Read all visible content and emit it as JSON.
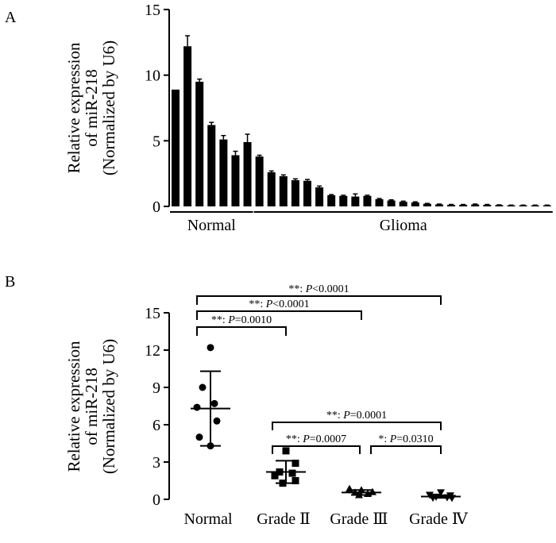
{
  "chart_data": [
    {
      "panel": "A",
      "type": "bar",
      "ylabel_lines": [
        "Relative expression",
        "of miR-218",
        "(Normalized by U6)"
      ],
      "ylim": [
        0,
        15
      ],
      "yticks": [
        0,
        5,
        10,
        15
      ],
      "groups": [
        {
          "label": "Normal",
          "count": 7
        },
        {
          "label": "Glioma",
          "count": 25
        }
      ],
      "values": [
        8.9,
        12.2,
        9.5,
        6.2,
        5.1,
        3.9,
        4.9,
        3.8,
        2.6,
        2.3,
        2.0,
        1.95,
        1.45,
        0.85,
        0.8,
        0.75,
        0.8,
        0.55,
        0.45,
        0.35,
        0.3,
        0.2,
        0.15,
        0.12,
        0.12,
        0.15,
        0.12,
        0.1,
        0.08,
        0.08,
        0.08,
        0.08
      ],
      "errors": [
        0.0,
        0.8,
        0.2,
        0.2,
        0.3,
        0.3,
        0.6,
        0.1,
        0.1,
        0.1,
        0.1,
        0.1,
        0.1,
        0.05,
        0.05,
        0.2,
        0.05,
        0.05,
        0.05,
        0.05,
        0.05,
        0.03,
        0.03,
        0.03,
        0.03,
        0.03,
        0.03,
        0.02,
        0.02,
        0.02,
        0.02,
        0.02
      ]
    },
    {
      "panel": "B",
      "type": "scatter",
      "ylabel_lines": [
        "Relative expression",
        "of miR-218",
        "(Normalized by U6)"
      ],
      "ylim": [
        0,
        15
      ],
      "yticks": [
        0,
        3,
        6,
        9,
        12,
        15
      ],
      "groups": [
        {
          "label": "Normal",
          "marker": "circle",
          "mean": 7.3,
          "sd": 3.0,
          "points": [
            12.2,
            9.0,
            7.7,
            7.4,
            6.3,
            5.0,
            4.3
          ]
        },
        {
          "label": "Grade Ⅱ",
          "marker": "square",
          "mean": 2.2,
          "sd": 0.9,
          "points": [
            3.9,
            2.9,
            2.2,
            2.1,
            1.9,
            1.5,
            1.3
          ]
        },
        {
          "label": "Grade Ⅲ",
          "marker": "triangle-up",
          "mean": 0.55,
          "sd": 0.2,
          "points": [
            0.85,
            0.75,
            0.6,
            0.55,
            0.45,
            0.35
          ]
        },
        {
          "label": "Grade Ⅳ",
          "marker": "triangle-down",
          "mean": 0.22,
          "sd": 0.1,
          "points": [
            0.55,
            0.35,
            0.3,
            0.2,
            0.15,
            0.12,
            0.1
          ]
        }
      ],
      "comparisons": [
        {
          "from": 0,
          "to": 3,
          "stars": "**",
          "p_op": "<",
          "p_value": "0.0001"
        },
        {
          "from": 0,
          "to": 2,
          "stars": "**",
          "p_op": "<",
          "p_value": "0.0001"
        },
        {
          "from": 0,
          "to": 1,
          "stars": "**",
          "p_op": "=",
          "p_value": "0.0010"
        },
        {
          "from": 1,
          "to": 3,
          "stars": "**",
          "p_op": "=",
          "p_value": "0.0001"
        },
        {
          "from": 1,
          "to": 2,
          "stars": "**",
          "p_op": "=",
          "p_value": "0.0007"
        },
        {
          "from": 2,
          "to": 3,
          "stars": "*",
          "p_op": "=",
          "p_value": "0.0310"
        }
      ]
    }
  ]
}
